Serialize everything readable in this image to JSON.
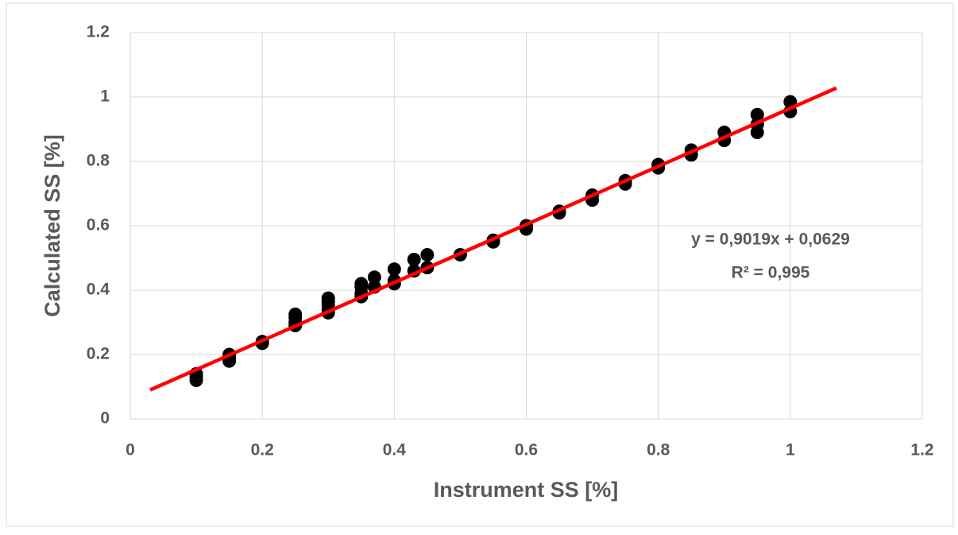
{
  "chart_data": {
    "type": "scatter",
    "xlabel": "Instrument SS [%]",
    "ylabel": "Calculated SS [%]",
    "xlim": [
      0,
      1.2
    ],
    "ylim": [
      0,
      1.2
    ],
    "xticks": [
      0,
      0.2,
      0.4,
      0.6,
      0.8,
      1,
      1.2
    ],
    "yticks": [
      0,
      0.2,
      0.4,
      0.6,
      0.8,
      1,
      1.2
    ],
    "grid": true,
    "series": [
      {
        "color": "#000000",
        "x": [
          0.1,
          0.1,
          0.1,
          0.15,
          0.15,
          0.15,
          0.2,
          0.2,
          0.25,
          0.25,
          0.25,
          0.25,
          0.3,
          0.3,
          0.3,
          0.3,
          0.3,
          0.35,
          0.35,
          0.35,
          0.35,
          0.37,
          0.37,
          0.4,
          0.4,
          0.4,
          0.43,
          0.43,
          0.45,
          0.45,
          0.5,
          0.55,
          0.55,
          0.6,
          0.6,
          0.65,
          0.65,
          0.7,
          0.7,
          0.75,
          0.75,
          0.8,
          0.8,
          0.85,
          0.85,
          0.9,
          0.9,
          0.95,
          0.95,
          0.95,
          1,
          1
        ],
        "values": [
          0.12,
          0.13,
          0.14,
          0.18,
          0.19,
          0.2,
          0.235,
          0.24,
          0.29,
          0.3,
          0.315,
          0.325,
          0.33,
          0.34,
          0.355,
          0.365,
          0.375,
          0.38,
          0.39,
          0.41,
          0.42,
          0.41,
          0.44,
          0.42,
          0.43,
          0.465,
          0.46,
          0.495,
          0.47,
          0.51,
          0.51,
          0.55,
          0.555,
          0.59,
          0.6,
          0.64,
          0.645,
          0.68,
          0.695,
          0.73,
          0.74,
          0.78,
          0.79,
          0.82,
          0.835,
          0.865,
          0.89,
          0.89,
          0.915,
          0.945,
          0.955,
          0.985
        ]
      }
    ],
    "trendline": {
      "color": "#ff0000",
      "x": [
        0.03,
        1.07
      ],
      "values": [
        0.09,
        1.028
      ],
      "equation": "y = 0,9019x + 0,0629",
      "r2": "R² = 0,995"
    }
  }
}
